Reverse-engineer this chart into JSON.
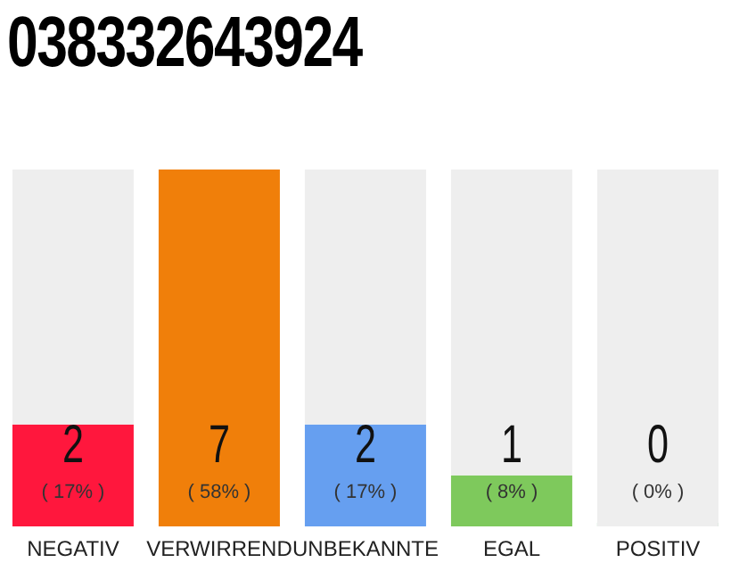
{
  "chart_data": {
    "type": "bar",
    "title": "038332643924",
    "categories": [
      "NEGATIV",
      "VERWIRREND",
      "UNBEKANNTE",
      "EGAL",
      "POSITIV"
    ],
    "stacked": true,
    "series": [
      {
        "colors": [
          "#ff173d",
          "#f07f0a",
          "#669ff0",
          "#7ec95c",
          "#2fae4e"
        ],
        "values": [
          2,
          7,
          2,
          1,
          0
        ],
        "value_labels": [
          "2",
          "7",
          "2",
          "1",
          "0"
        ]
      },
      {
        "color": "#eeeeee",
        "values": [
          5,
          0,
          5,
          6,
          7
        ]
      }
    ],
    "annotations": [
      "( 17% )",
      "( 58% )",
      "( 17% )",
      "( 8% )",
      "( 0% )"
    ],
    "tick_labels": "x"
  }
}
